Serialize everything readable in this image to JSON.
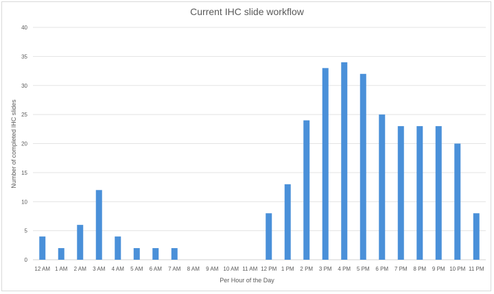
{
  "chart_data": {
    "type": "bar",
    "title": "Current IHC slide workflow",
    "xlabel": "Per Hour of the Day",
    "ylabel": "Number of completed IHC slides",
    "ylim": [
      0,
      40
    ],
    "yticks": [
      0,
      5,
      10,
      15,
      20,
      25,
      30,
      35,
      40
    ],
    "grid": true,
    "legend": "none",
    "bar_color": "#4a90d9",
    "categories": [
      "12 AM",
      "1 AM",
      "2 AM",
      "3 AM",
      "4 AM",
      "5 AM",
      "6 AM",
      "7 AM",
      "8 AM",
      "9 AM",
      "10 AM",
      "11 AM",
      "12 PM",
      "1 PM",
      "2 PM",
      "3 PM",
      "4 PM",
      "5 PM",
      "6 PM",
      "7 PM",
      "8 PM",
      "9 PM",
      "10 PM",
      "11 PM"
    ],
    "values": [
      4,
      2,
      6,
      12,
      4,
      2,
      2,
      2,
      0,
      0,
      0,
      0,
      8,
      13,
      24,
      33,
      34,
      32,
      25,
      23,
      23,
      23,
      20,
      8
    ]
  }
}
